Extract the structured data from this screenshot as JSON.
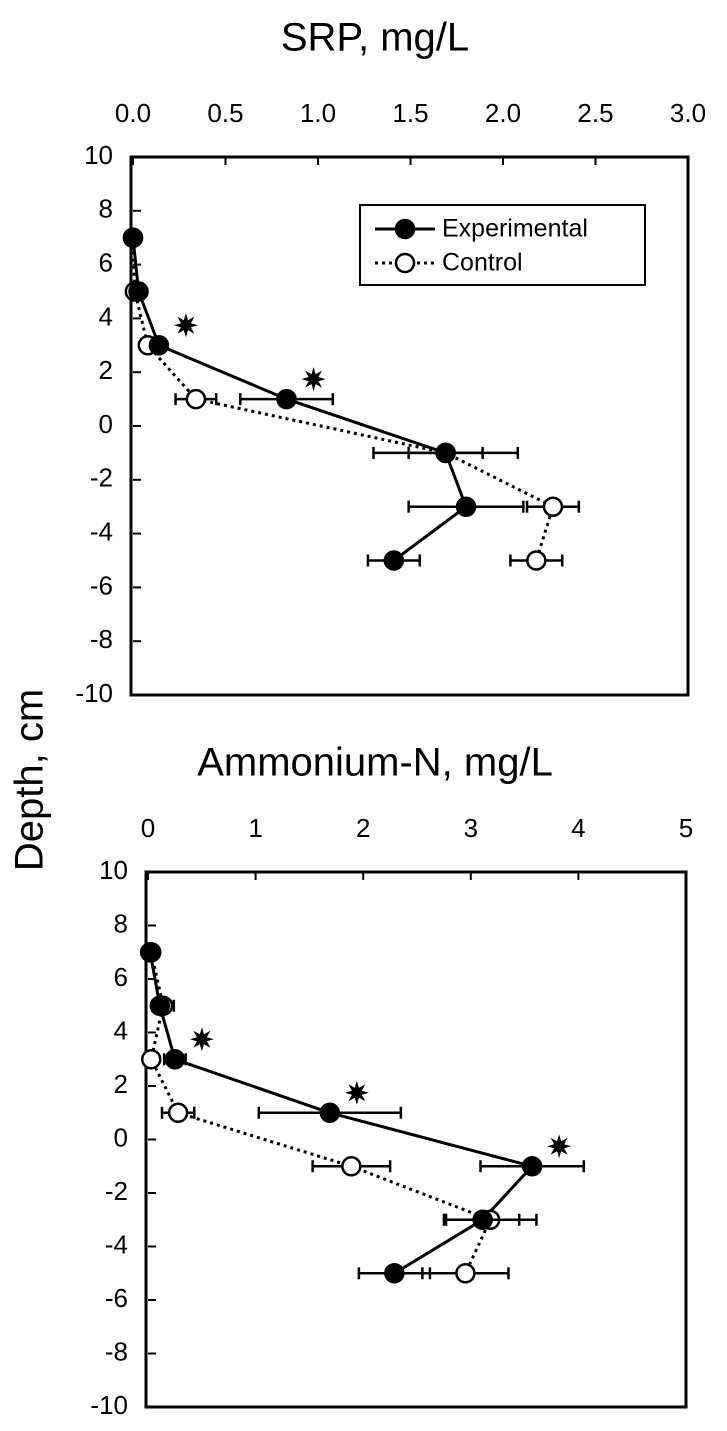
{
  "chart_data": [
    {
      "type": "line",
      "title": "SRP, mg/L",
      "ylabel": "Depth, cm",
      "y": [
        7,
        5,
        3,
        1,
        -1,
        -3,
        -5
      ],
      "xlim": [
        0,
        3
      ],
      "xticks": [
        {
          "value": 0,
          "label": "0.0"
        },
        0.5,
        {
          "value": 1,
          "label": "1.0"
        },
        1.5,
        {
          "value": 2,
          "label": "2.0"
        },
        2.5,
        {
          "value": 3,
          "label": "3.0"
        }
      ],
      "ylim": [
        -10,
        10
      ],
      "yticks": [
        10,
        8,
        6,
        4,
        2,
        0,
        -2,
        -4,
        -6,
        -8,
        -10
      ],
      "legend": "top-right",
      "series": [
        {
          "name": "Experimental",
          "color": "#000000",
          "marker": "filled",
          "dash": "solid",
          "values": [
            0.0,
            0.03,
            0.14,
            0.83,
            1.69,
            1.8,
            1.41
          ],
          "errors": [
            0,
            0,
            0.03,
            0.25,
            0.39,
            0.31,
            0.14
          ],
          "significant": [
            false,
            false,
            true,
            true,
            false,
            false,
            false
          ]
        },
        {
          "name": "Control",
          "color": "#000000",
          "marker": "open",
          "dash": "dotted",
          "values": [
            0.0,
            0.01,
            0.08,
            0.34,
            1.69,
            2.27,
            2.18
          ],
          "errors": [
            0,
            0,
            0,
            0.11,
            0.2,
            0.14,
            0.14
          ]
        }
      ]
    },
    {
      "type": "line",
      "title": "Ammonium-N, mg/L",
      "y": [
        7,
        5,
        3,
        1,
        -1,
        -3,
        -5
      ],
      "xlim": [
        0,
        5
      ],
      "xticks": [
        0,
        1,
        2,
        3,
        4,
        5
      ],
      "ylim": [
        -10,
        10
      ],
      "yticks": [
        10,
        8,
        6,
        4,
        2,
        0,
        -2,
        -4,
        -6,
        -8,
        -10
      ],
      "series": [
        {
          "name": "Experimental",
          "color": "#000000",
          "marker": "filled",
          "dash": "solid",
          "values": [
            0.02,
            0.11,
            0.25,
            1.69,
            3.57,
            3.11,
            2.29
          ],
          "errors": [
            0,
            0,
            0.1,
            0.66,
            0.48,
            0.34,
            0.33
          ],
          "significant": [
            false,
            false,
            true,
            true,
            true,
            false,
            false
          ]
        },
        {
          "name": "Control",
          "color": "#000000",
          "marker": "open",
          "dash": "dotted",
          "values": [
            0.03,
            0.14,
            0.03,
            0.28,
            1.89,
            3.18,
            2.95
          ],
          "errors": [
            0,
            0.1,
            0,
            0.15,
            0.36,
            0.43,
            0.4
          ]
        }
      ]
    }
  ]
}
